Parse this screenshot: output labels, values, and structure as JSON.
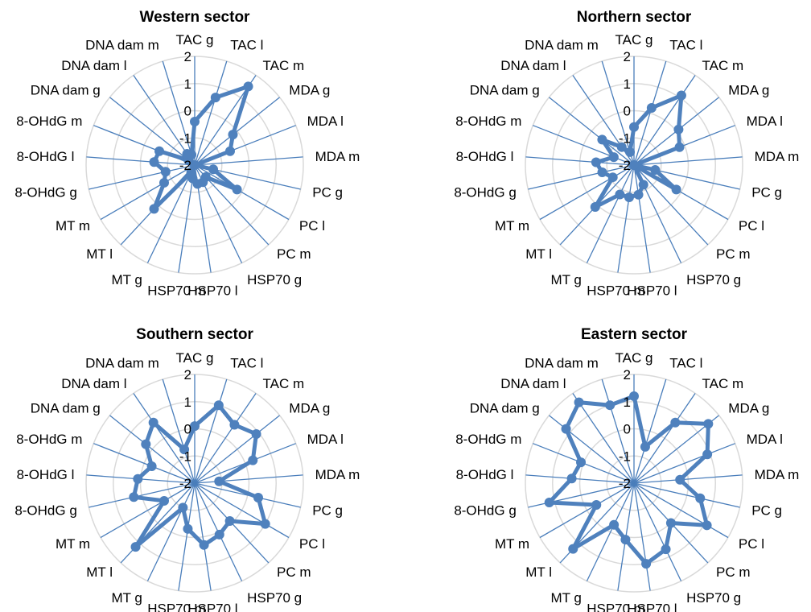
{
  "chart_data": [
    {
      "type": "radar",
      "title": "Western sector",
      "categories": [
        "TAC g",
        "TAC l",
        "TAC m",
        "MDA g",
        "MDA l",
        "MDA m",
        "PC g",
        "PC l",
        "PC m",
        "HSP70 g",
        "HSP70 l",
        "HSP70 m",
        "MT g",
        "MT l",
        "MT m",
        "8-OHdG g",
        "8-OHdG l",
        "8-OHdG m",
        "DNA dam g",
        "DNA dam l",
        "DNA dam m"
      ],
      "rlim": [
        -2,
        2
      ],
      "ticks": [
        -2,
        -1,
        0,
        1,
        2
      ],
      "grid": true,
      "series": [
        {
          "values": [
            -0.4,
            0.6,
            1.5,
            -0.2,
            -0.6,
            -2.1,
            -1.3,
            -0.2,
            -1.4,
            -1.3,
            -1.3,
            -1.5,
            -1.7,
            0.2,
            -0.7,
            -0.9,
            -0.5,
            -0.6,
            -1.7,
            -1.5,
            -1.6
          ]
        }
      ]
    },
    {
      "type": "radar",
      "title": "Northern sector",
      "categories": [
        "TAC g",
        "TAC l",
        "TAC m",
        "MDA g",
        "MDA l",
        "MDA m",
        "PC g",
        "PC l",
        "PC m",
        "HSP70 g",
        "HSP70 l",
        "HSP70 m",
        "MT g",
        "MT l",
        "MT m",
        "8-OHdG g",
        "8-OHdG l",
        "8-OHdG m",
        "DNA dam g",
        "DNA dam l",
        "DNA dam m"
      ],
      "rlim": [
        -2,
        2
      ],
      "ticks": [
        -2,
        -1,
        0,
        1,
        2
      ],
      "grid": true,
      "series": [
        {
          "values": [
            -0.6,
            0.2,
            1.1,
            0.1,
            -0.2,
            -2.1,
            -1.2,
            -0.2,
            -2.0,
            -1.2,
            -0.9,
            -0.8,
            -0.8,
            0.1,
            -1.1,
            -0.8,
            -0.6,
            -1.2,
            -0.5,
            -1.2,
            -1.5
          ]
        }
      ]
    },
    {
      "type": "radar",
      "title": "Southern sector",
      "categories": [
        "TAC g",
        "TAC l",
        "TAC m",
        "MDA g",
        "MDA l",
        "MDA m",
        "PC g",
        "PC l",
        "PC m",
        "HSP70 g",
        "HSP70 l",
        "HSP70 m",
        "MT g",
        "MT l",
        "MT m",
        "8-OHdG g",
        "8-OHdG l",
        "8-OHdG m",
        "DNA dam g",
        "DNA dam l",
        "DNA dam m"
      ],
      "rlim": [
        -2,
        2
      ],
      "ticks": [
        -2,
        -1,
        0,
        1,
        2
      ],
      "grid": true,
      "series": [
        {
          "values": [
            0.1,
            1.0,
            0.6,
            0.9,
            0.3,
            -1.1,
            0.4,
            1.0,
            -0.1,
            0.1,
            0.3,
            -0.3,
            -1.0,
            1.2,
            -0.7,
            0.3,
            0.1,
            -0.3,
            0.3,
            0.7,
            -0.7
          ]
        }
      ]
    },
    {
      "type": "radar",
      "title": "Eastern sector",
      "categories": [
        "TAC g",
        "TAC l",
        "TAC m",
        "MDA g",
        "MDA l",
        "MDA m",
        "PC g",
        "PC l",
        "PC m",
        "HSP70 g",
        "HSP70 l",
        "HSP70 m",
        "MT g",
        "MT l",
        "MT m",
        "8-OHdG g",
        "8-OHdG l",
        "8-OHdG m",
        "DNA dam g",
        "DNA dam l",
        "DNA dam m"
      ],
      "rlim": [
        -2,
        2
      ],
      "ticks": [
        -2,
        -1,
        0,
        1,
        2
      ],
      "grid": true,
      "series": [
        {
          "values": [
            1.2,
            -0.6,
            0.7,
            1.5,
            0.9,
            -0.3,
            0.5,
            1.1,
            0.0,
            0.7,
            1.0,
            0.1,
            -0.3,
            1.3,
            -0.4,
            1.2,
            0.3,
            0.1,
            1.2,
            1.6,
            1.0
          ]
        }
      ]
    }
  ],
  "colors": {
    "series": "#4f81bd",
    "spokes": "#4a7ebb",
    "grid": "#d9d9d9"
  }
}
